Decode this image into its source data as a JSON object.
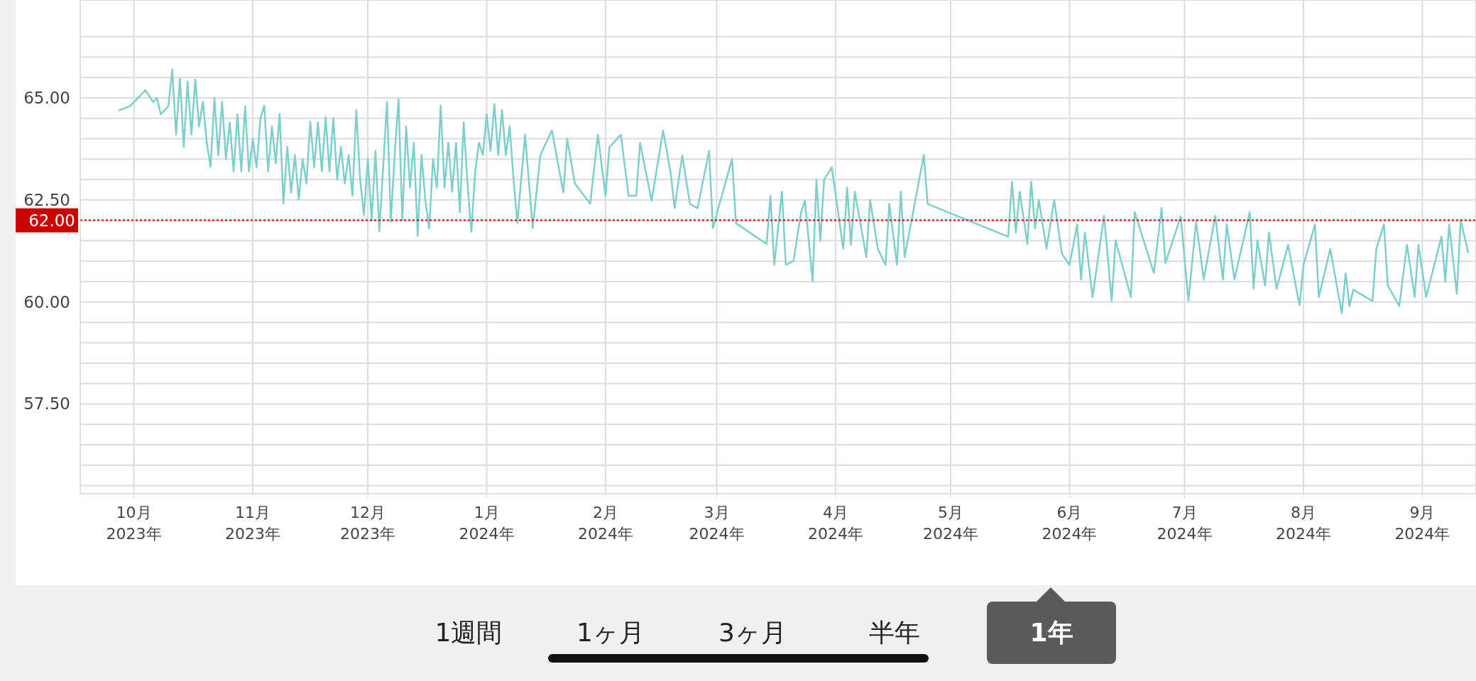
{
  "chart_data": {
    "type": "line",
    "xlim": [
      "2023-09-17",
      "2024-09-15"
    ],
    "xticks": [
      {
        "value": "2023-10-01",
        "label": "10月\n2023年"
      },
      {
        "value": "2023-11-01",
        "label": "11月\n2023年"
      },
      {
        "value": "2023-12-01",
        "label": "12月\n2023年"
      },
      {
        "value": "2024-01-01",
        "label": "1月\n2024年"
      },
      {
        "value": "2024-02-01",
        "label": "2月\n2024年"
      },
      {
        "value": "2024-03-01",
        "label": "3月\n2024年"
      },
      {
        "value": "2024-04-01",
        "label": "4月\n2024年"
      },
      {
        "value": "2024-05-01",
        "label": "5月\n2024年"
      },
      {
        "value": "2024-06-01",
        "label": "6月\n2024年"
      },
      {
        "value": "2024-07-01",
        "label": "7月\n2024年"
      },
      {
        "value": "2024-08-01",
        "label": "8月\n2024年"
      },
      {
        "value": "2024-09-01",
        "label": "9月\n2024年"
      }
    ],
    "ylim": [
      55.3,
      67.4
    ],
    "yticks": [
      {
        "value": 55.5,
        "label": null
      },
      {
        "value": 56,
        "label": null
      },
      {
        "value": 56.5,
        "label": null
      },
      {
        "value": 57,
        "label": null
      },
      {
        "value": 57.5,
        "label": "57.50"
      },
      {
        "value": 58,
        "label": null
      },
      {
        "value": 58.5,
        "label": null
      },
      {
        "value": 59,
        "label": null
      },
      {
        "value": 59.5,
        "label": null
      },
      {
        "value": 60,
        "label": "60.00"
      },
      {
        "value": 60.5,
        "label": null
      },
      {
        "value": 61,
        "label": null
      },
      {
        "value": 61.5,
        "label": null
      },
      {
        "value": 62,
        "label": null
      },
      {
        "value": 62.5,
        "label": "62.50"
      },
      {
        "value": 63,
        "label": null
      },
      {
        "value": 63.5,
        "label": null
      },
      {
        "value": 64,
        "label": null
      },
      {
        "value": 64.5,
        "label": null
      },
      {
        "value": 65,
        "label": "65.00"
      },
      {
        "value": 65.5,
        "label": null
      },
      {
        "value": 66,
        "label": null
      },
      {
        "value": 66.5,
        "label": null
      }
    ],
    "grid": true,
    "line_style": "solid",
    "ref_lines": [
      {
        "axis": "y",
        "value": 62,
        "label": "62.00",
        "color": "#cc0000",
        "line_style": "dotted"
      }
    ],
    "annotations": [
      "1週間",
      "1ヶ月",
      "3ヶ月",
      "半年",
      "1年"
    ],
    "series": [
      {
        "color": "#7ecfcc",
        "x": [
          "2023-09-27",
          "2023-09-30",
          "2023-10-04",
          "2023-10-06",
          "2023-10-07",
          "2023-10-08",
          "2023-10-10",
          "2023-10-11",
          "2023-10-12",
          "2023-10-13",
          "2023-10-14",
          "2023-10-15",
          "2023-10-16",
          "2023-10-17",
          "2023-10-18",
          "2023-10-19",
          "2023-10-20",
          "2023-10-21",
          "2023-10-22",
          "2023-10-23",
          "2023-10-24",
          "2023-10-25",
          "2023-10-26",
          "2023-10-27",
          "2023-10-28",
          "2023-10-29",
          "2023-10-30",
          "2023-10-31",
          "2023-11-01",
          "2023-11-02",
          "2023-11-03",
          "2023-11-04",
          "2023-11-05",
          "2023-11-06",
          "2023-11-07",
          "2023-11-08",
          "2023-11-09",
          "2023-11-10",
          "2023-11-11",
          "2023-11-12",
          "2023-11-13",
          "2023-11-14",
          "2023-11-15",
          "2023-11-16",
          "2023-11-17",
          "2023-11-18",
          "2023-11-19",
          "2023-11-20",
          "2023-11-21",
          "2023-11-22",
          "2023-11-23",
          "2023-11-24",
          "2023-11-25",
          "2023-11-26",
          "2023-11-27",
          "2023-11-28",
          "2023-11-29",
          "2023-11-30",
          "2023-12-01",
          "2023-12-02",
          "2023-12-03",
          "2023-12-04",
          "2023-12-05",
          "2023-12-06",
          "2023-12-07",
          "2023-12-08",
          "2023-12-09",
          "2023-12-10",
          "2023-12-11",
          "2023-12-12",
          "2023-12-13",
          "2023-12-14",
          "2023-12-15",
          "2023-12-16",
          "2023-12-17",
          "2023-12-18",
          "2023-12-19",
          "2023-12-20",
          "2023-12-21",
          "2023-12-22",
          "2023-12-23",
          "2023-12-24",
          "2023-12-25",
          "2023-12-26",
          "2023-12-27",
          "2023-12-28",
          "2023-12-29",
          "2023-12-30",
          "2023-12-31",
          "2024-01-01",
          "2024-01-02",
          "2024-01-03",
          "2024-01-04",
          "2024-01-05",
          "2024-01-06",
          "2024-01-07",
          "2024-01-08",
          "2024-01-09",
          "2024-01-11",
          "2024-01-13",
          "2024-01-15",
          "2024-01-18",
          "2024-01-21",
          "2024-01-22",
          "2024-01-24",
          "2024-01-28",
          "2024-01-30",
          "2024-02-01",
          "2024-02-02",
          "2024-02-05",
          "2024-02-07",
          "2024-02-09",
          "2024-02-10",
          "2024-02-13",
          "2024-02-16",
          "2024-02-18",
          "2024-02-19",
          "2024-02-21",
          "2024-02-23",
          "2024-02-25",
          "2024-02-28",
          "2024-02-29",
          "2024-03-02",
          "2024-03-05",
          "2024-03-06",
          "2024-03-14",
          "2024-03-15",
          "2024-03-16",
          "2024-03-18",
          "2024-03-19",
          "2024-03-21",
          "2024-03-23",
          "2024-03-24",
          "2024-03-26",
          "2024-03-27",
          "2024-03-28",
          "2024-03-29",
          "2024-03-31",
          "2024-04-03",
          "2024-04-04",
          "2024-04-05",
          "2024-04-06",
          "2024-04-09",
          "2024-04-10",
          "2024-04-12",
          "2024-04-14",
          "2024-04-15",
          "2024-04-17",
          "2024-04-18",
          "2024-04-19",
          "2024-04-24",
          "2024-04-25",
          "2024-05-16",
          "2024-05-17",
          "2024-05-18",
          "2024-05-19",
          "2024-05-21",
          "2024-05-22",
          "2024-05-23",
          "2024-05-24",
          "2024-05-26",
          "2024-05-28",
          "2024-05-30",
          "2024-06-01",
          "2024-06-03",
          "2024-06-04",
          "2024-06-05",
          "2024-06-07",
          "2024-06-10",
          "2024-06-12",
          "2024-06-13",
          "2024-06-17",
          "2024-06-18",
          "2024-06-23",
          "2024-06-25",
          "2024-06-26",
          "2024-06-30",
          "2024-07-02",
          "2024-07-04",
          "2024-07-06",
          "2024-07-09",
          "2024-07-11",
          "2024-07-12",
          "2024-07-14",
          "2024-07-18",
          "2024-07-19",
          "2024-07-20",
          "2024-07-22",
          "2024-07-23",
          "2024-07-25",
          "2024-07-28",
          "2024-07-30",
          "2024-07-31",
          "2024-08-01",
          "2024-08-04",
          "2024-08-05",
          "2024-08-08",
          "2024-08-11",
          "2024-08-12",
          "2024-08-13",
          "2024-08-14",
          "2024-08-19",
          "2024-08-20",
          "2024-08-22",
          "2024-08-23",
          "2024-08-26",
          "2024-08-28",
          "2024-08-30",
          "2024-08-31",
          "2024-09-02",
          "2024-09-06",
          "2024-09-07",
          "2024-09-08",
          "2024-09-10",
          "2024-09-11",
          "2024-09-13"
        ],
        "values": [
          64.69,
          64.8,
          65.19,
          64.9,
          65.0,
          64.6,
          64.8,
          65.69,
          64.1,
          65.48,
          63.8,
          65.4,
          64.1,
          65.45,
          64.3,
          64.9,
          63.9,
          63.31,
          65.0,
          63.6,
          64.9,
          63.5,
          64.4,
          63.19,
          64.6,
          63.2,
          64.8,
          63.2,
          64.0,
          63.3,
          64.5,
          64.81,
          63.2,
          64.3,
          63.4,
          64.61,
          62.41,
          63.8,
          62.68,
          63.6,
          62.5,
          63.5,
          62.9,
          64.42,
          63.3,
          64.4,
          63.2,
          64.53,
          63.2,
          64.5,
          63.0,
          63.8,
          62.9,
          63.6,
          62.6,
          64.7,
          63.0,
          62.13,
          63.5,
          62.0,
          63.7,
          61.73,
          63.3,
          64.9,
          61.97,
          63.6,
          64.96,
          62.0,
          64.3,
          62.8,
          63.9,
          61.62,
          63.6,
          62.5,
          61.8,
          63.5,
          62.8,
          64.81,
          62.8,
          63.9,
          62.7,
          63.9,
          62.2,
          64.4,
          62.9,
          61.72,
          63.2,
          63.9,
          63.6,
          64.6,
          63.7,
          64.85,
          63.6,
          64.7,
          63.59,
          64.3,
          63.0,
          61.93,
          64.1,
          61.81,
          63.6,
          64.2,
          62.68,
          64.0,
          62.9,
          62.41,
          64.1,
          62.6,
          63.79,
          64.1,
          62.6,
          62.6,
          63.9,
          62.48,
          64.2,
          63.15,
          62.3,
          63.59,
          62.4,
          62.3,
          63.7,
          61.81,
          62.5,
          63.51,
          61.93,
          61.42,
          62.6,
          60.91,
          62.7,
          60.91,
          61.0,
          62.2,
          62.48,
          60.51,
          63.0,
          61.5,
          63.0,
          63.3,
          61.3,
          62.8,
          61.4,
          62.7,
          61.1,
          62.5,
          61.3,
          60.91,
          62.4,
          60.91,
          62.7,
          61.1,
          63.6,
          62.4,
          61.6,
          62.95,
          61.7,
          62.7,
          61.42,
          62.95,
          61.8,
          62.5,
          61.3,
          62.5,
          61.18,
          60.91,
          61.9,
          60.55,
          61.7,
          60.12,
          62.11,
          60.02,
          61.51,
          60.12,
          62.2,
          60.71,
          62.3,
          60.95,
          62.1,
          60.02,
          61.97,
          60.55,
          62.11,
          60.55,
          61.9,
          60.55,
          62.2,
          60.32,
          61.51,
          60.4,
          61.7,
          60.32,
          61.4,
          60.4,
          59.92,
          60.9,
          61.9,
          60.12,
          61.3,
          59.72,
          60.7,
          59.9,
          60.3,
          60.02,
          61.3,
          61.9,
          60.4,
          59.9,
          61.4,
          60.12,
          61.4,
          60.12,
          61.6,
          60.5,
          61.9,
          60.2,
          62.0,
          61.2
        ]
      }
    ]
  }
}
